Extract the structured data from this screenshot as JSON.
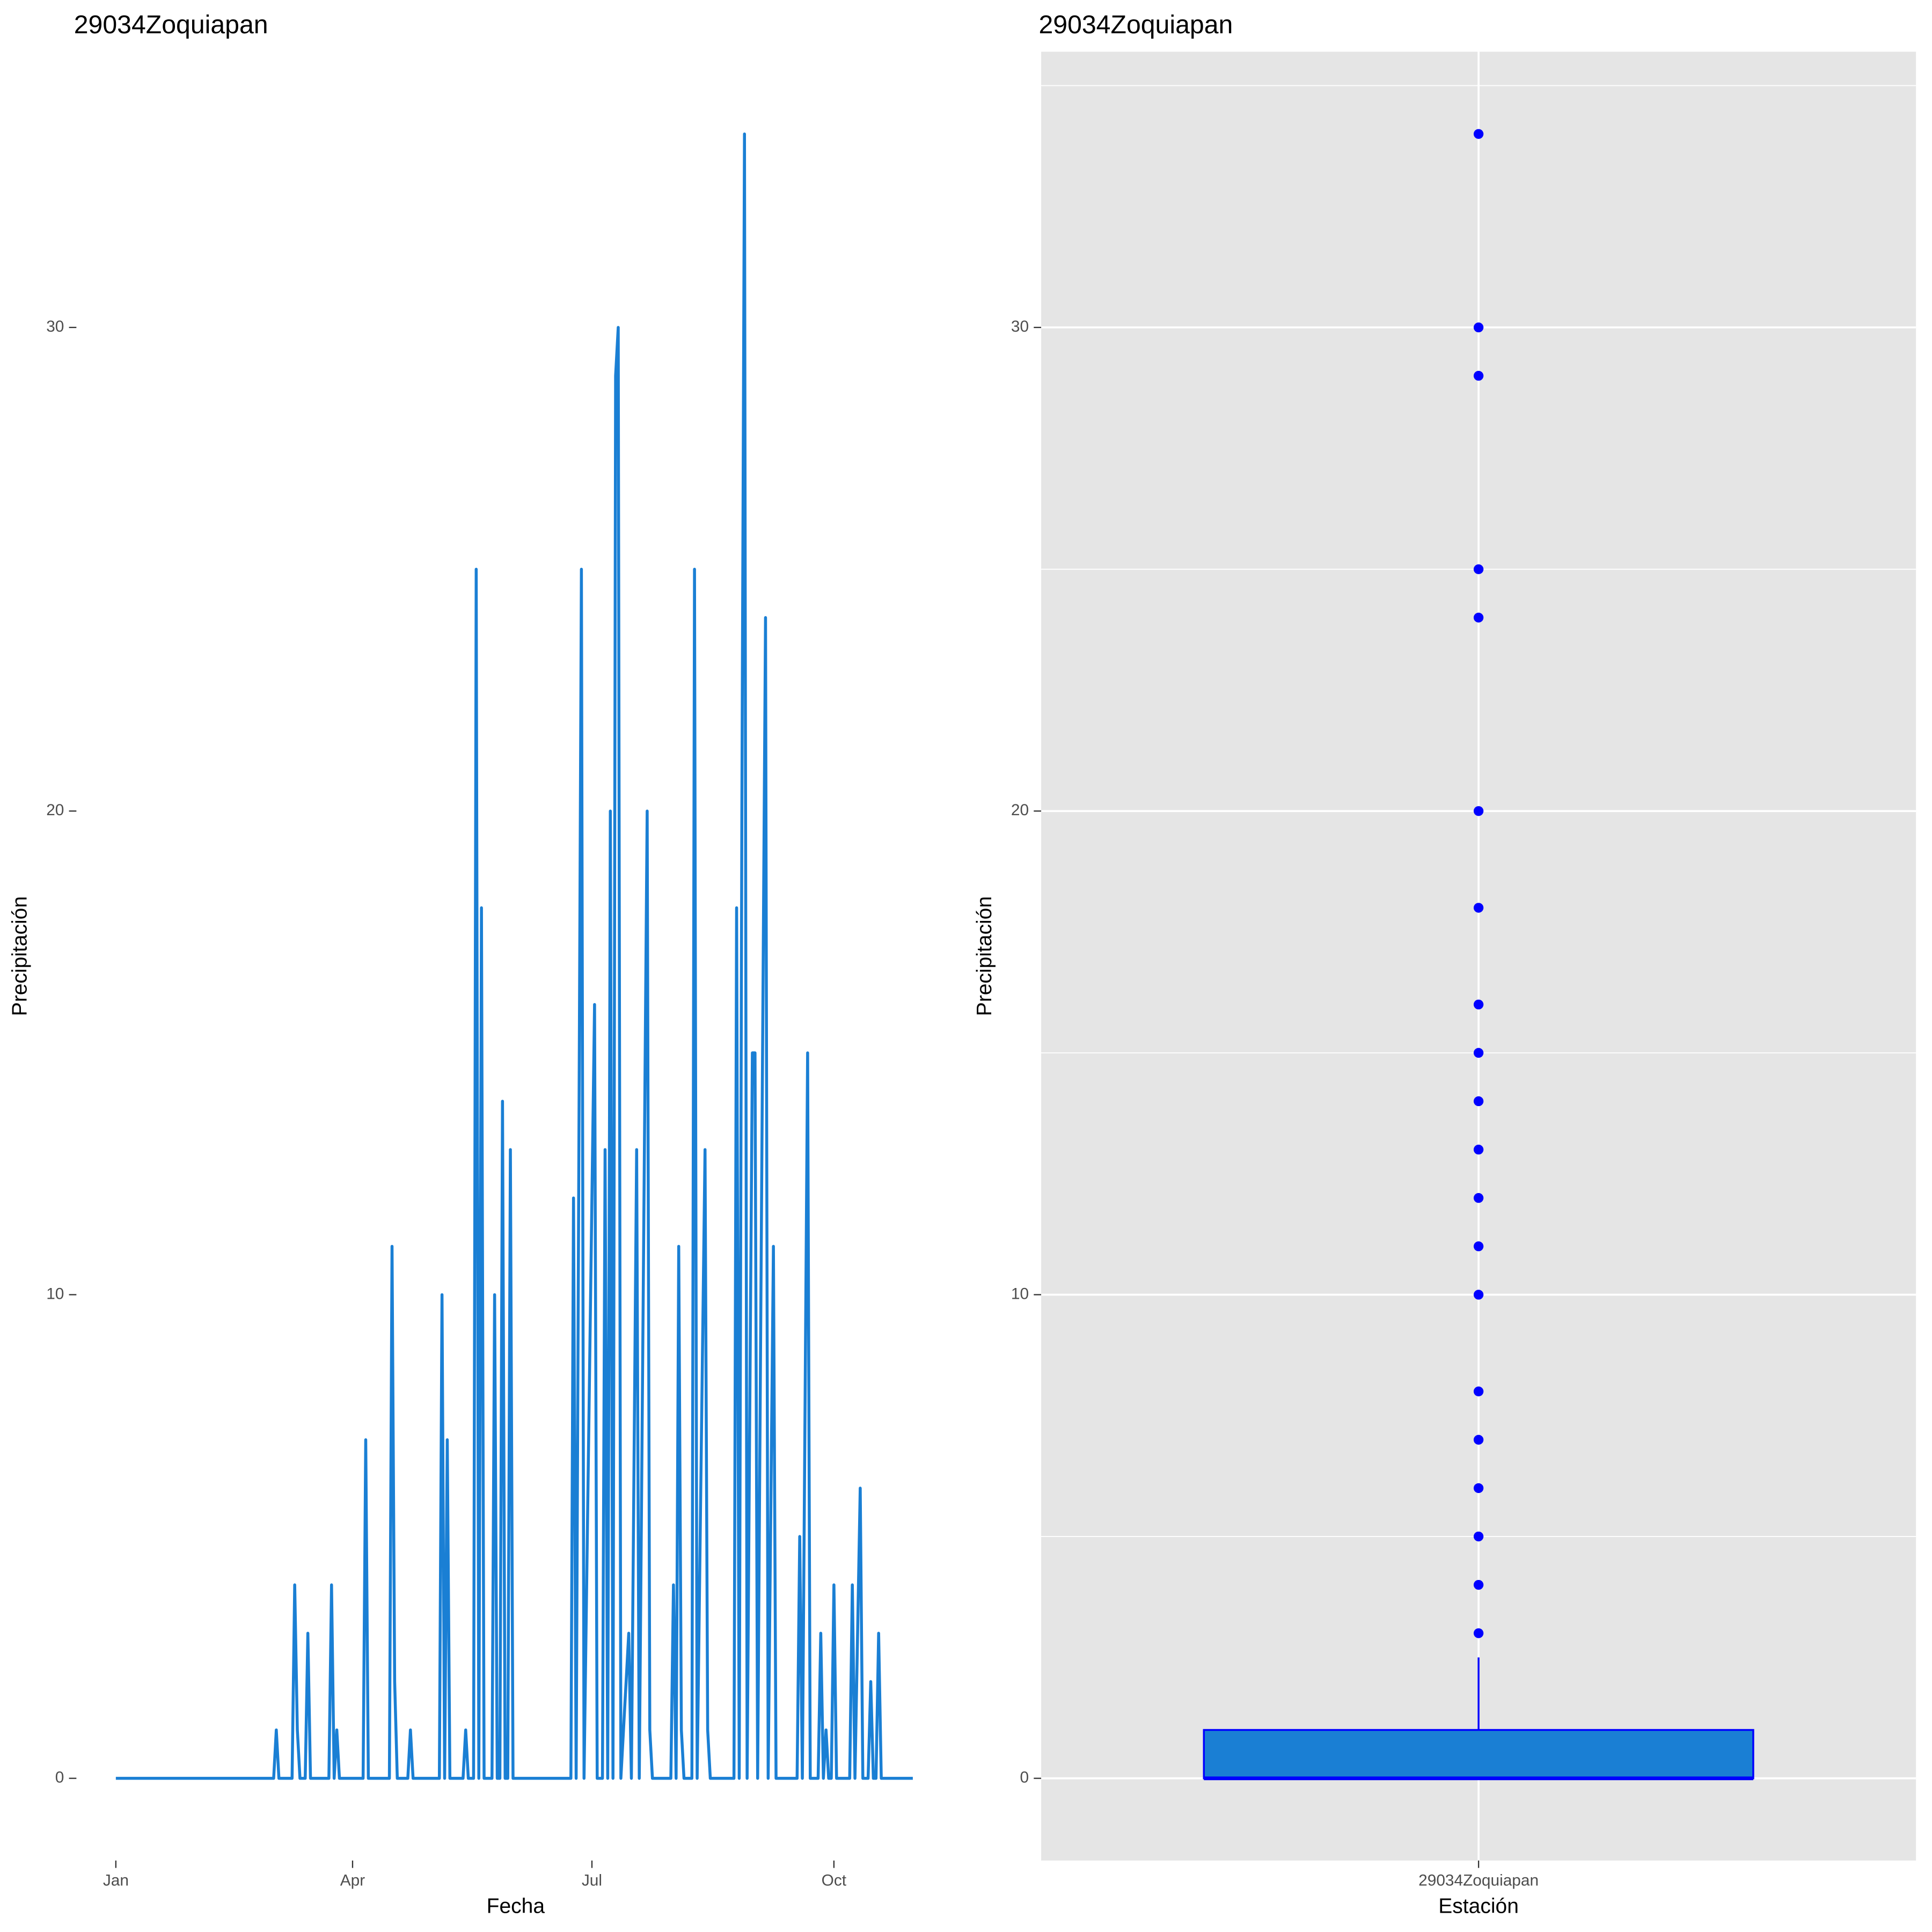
{
  "chart_data": [
    {
      "type": "line",
      "title": "29034Zoquiapan",
      "xlabel": "Fecha",
      "ylabel": "Precipitación",
      "color": "#1a7fd4",
      "grid": false,
      "xlim": [
        -15,
        319
      ],
      "xticks": [
        {
          "value": 0,
          "label": "Jan"
        },
        {
          "value": 90,
          "label": "Apr"
        },
        {
          "value": 181,
          "label": "Jul"
        },
        {
          "value": 273,
          "label": "Oct"
        }
      ],
      "ylim": [
        -1.7,
        35.7
      ],
      "yticks": [
        0,
        10,
        20,
        30
      ],
      "x": [
        0,
        60,
        61,
        62,
        67,
        68,
        69,
        70,
        72,
        73,
        74,
        81,
        82,
        83,
        84,
        85,
        94,
        95,
        96,
        104,
        105,
        106,
        107,
        111,
        112,
        113,
        123,
        124,
        125,
        126,
        127,
        132,
        133,
        134,
        136,
        137,
        138,
        139,
        140,
        143,
        144,
        145,
        146,
        147,
        148,
        149,
        150,
        151,
        173,
        174,
        175,
        177,
        178,
        182,
        183,
        185,
        186,
        187,
        188,
        189,
        190,
        191,
        192,
        195,
        196,
        198,
        199,
        202,
        203,
        204,
        211,
        212,
        213,
        214,
        215,
        216,
        219,
        220,
        221,
        224,
        225,
        226,
        235,
        236,
        237,
        238,
        239,
        240,
        242,
        243,
        244,
        247,
        248,
        250,
        251,
        259,
        260,
        261,
        263,
        264,
        267,
        268,
        269,
        270,
        271,
        272,
        273,
        274,
        279,
        280,
        281,
        283,
        284,
        286,
        287,
        288,
        289,
        290,
        291,
        303
      ],
      "values": [
        0,
        0,
        1,
        0,
        0,
        4,
        1,
        0,
        0,
        3,
        0,
        0,
        4,
        0,
        1,
        0,
        0,
        7,
        0,
        0,
        11,
        2,
        0,
        0,
        1,
        0,
        0,
        10,
        0,
        7,
        0,
        0,
        1,
        0,
        0,
        25,
        0,
        18,
        0,
        0,
        10,
        0,
        0,
        14,
        0,
        0,
        13,
        0,
        0,
        12,
        0,
        25,
        0,
        16,
        0,
        0,
        13,
        0,
        20,
        0,
        29,
        30,
        0,
        3,
        0,
        13,
        0,
        20,
        1,
        0,
        0,
        4,
        0,
        11,
        1,
        0,
        0,
        25,
        0,
        13,
        1,
        0,
        0,
        18,
        0,
        20,
        34,
        0,
        15,
        15,
        0,
        24,
        0,
        11,
        0,
        0,
        5,
        0,
        15,
        0,
        0,
        3,
        0,
        1,
        0,
        0,
        4,
        0,
        0,
        4,
        0,
        6,
        0,
        0,
        2,
        0,
        0,
        3,
        0,
        0
      ]
    },
    {
      "type": "boxplot",
      "title": "29034Zoquiapan",
      "xlabel": "Estación",
      "ylabel": "Precipitación",
      "color": "#1a7fd4",
      "stroke": "#0000ff",
      "grid": true,
      "panel_background": "#e5e5e5",
      "categories": [
        "29034Zoquiapan"
      ],
      "ylim": [
        -1.7,
        35.7
      ],
      "yticks": [
        0,
        10,
        20,
        30
      ],
      "minor_yticks": [
        5,
        15,
        25,
        35
      ],
      "q1": 0,
      "median": 0,
      "q3": 1,
      "whisker_low": 0,
      "whisker_high": 2.5,
      "outliers": [
        34,
        30,
        29,
        25,
        24,
        20,
        18,
        16,
        15,
        14,
        13,
        12,
        11,
        10,
        8,
        7,
        6,
        5,
        4,
        3
      ]
    }
  ]
}
